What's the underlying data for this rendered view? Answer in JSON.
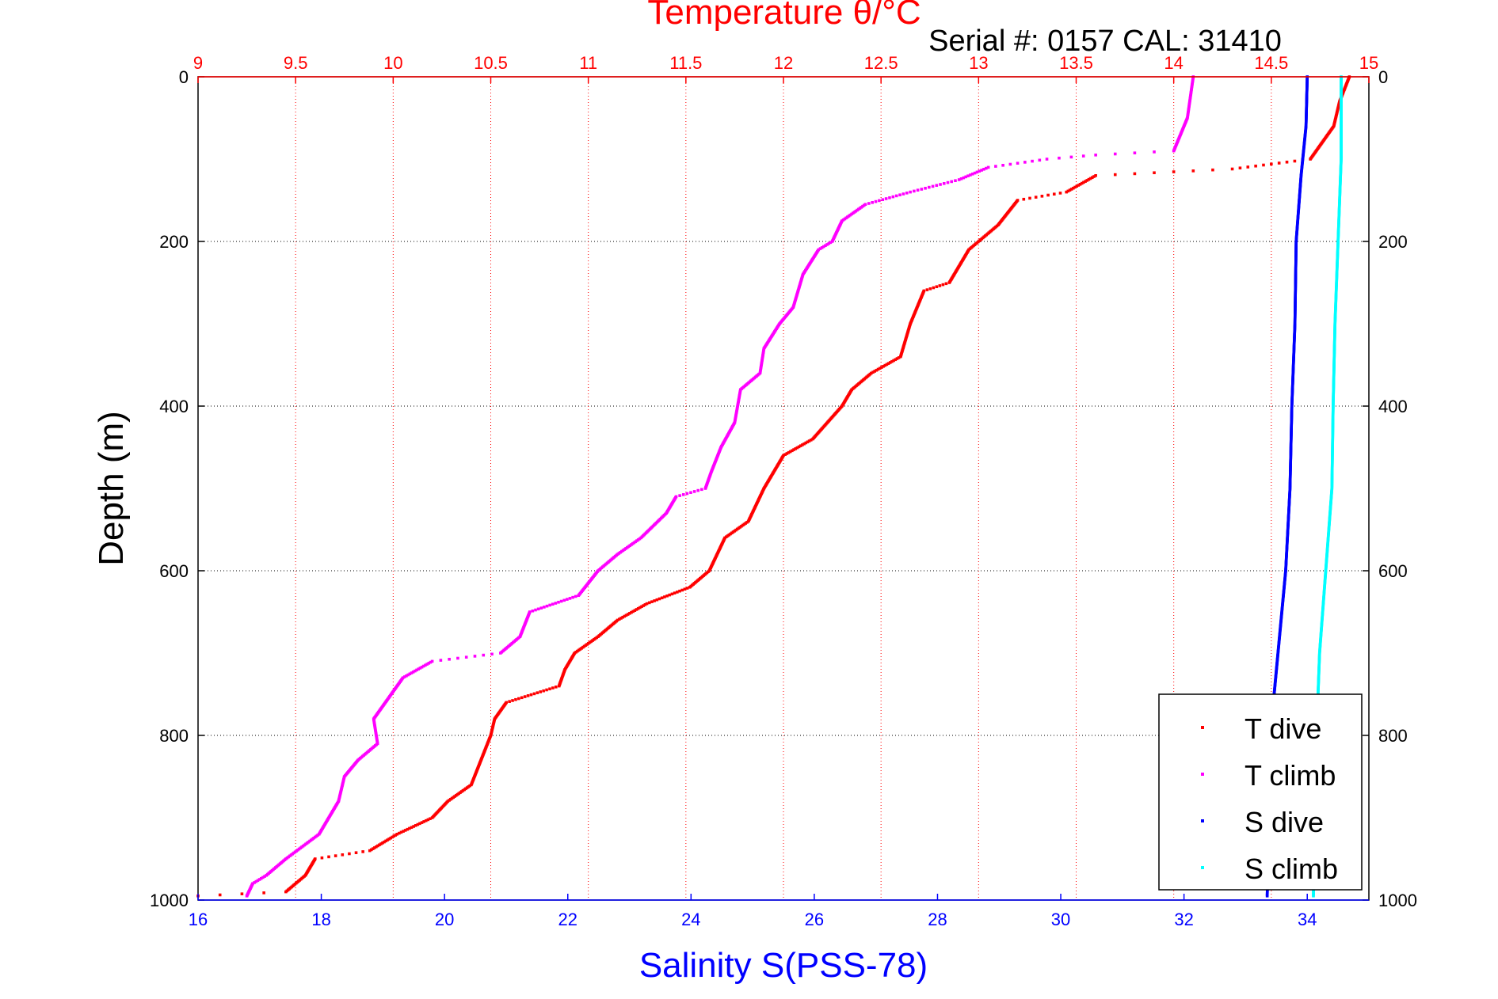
{
  "header": {
    "title": "Temperature θ/°C",
    "subtitle": "Serial #: 0157  CAL: 31410"
  },
  "colors": {
    "t_dive": "#ff0000",
    "t_climb": "#ff00ff",
    "s_dive": "#0000ff",
    "s_climb": "#00ffff",
    "axis_top": "#ff0000",
    "axis_bottom": "#0000ff",
    "grid_vertical": "#ff0000",
    "grid_horizontal": "#000000"
  },
  "chart_data": {
    "type": "scatter",
    "title": "Temperature θ/°C",
    "subtitle": "Serial #: 0157  CAL: 31410",
    "ylabel": "Depth (m)",
    "xlabel_top": "Temperature θ/°C",
    "xlabel_bottom": "Salinity S(PSS-78)",
    "y_inverted": true,
    "ylim": [
      0,
      1000
    ],
    "xlim_top": [
      9,
      15
    ],
    "xlim_bottom": [
      16,
      35
    ],
    "yticks": [
      0,
      200,
      400,
      600,
      800,
      1000
    ],
    "yticks_right": [
      0,
      200,
      400,
      600,
      800,
      1000
    ],
    "xticks_top": [
      "9",
      "9.5",
      "10",
      "10.5",
      "11",
      "11.5",
      "12",
      "12.5",
      "13",
      "13.5",
      "14",
      "14.5",
      "15"
    ],
    "xticks_bottom": [
      "16",
      "18",
      "20",
      "22",
      "24",
      "26",
      "28",
      "30",
      "32",
      "34"
    ],
    "grid": true,
    "legend_position": "bottom-right",
    "legend": [
      "T dive",
      "T climb",
      "S dive",
      "S climb"
    ],
    "series": [
      {
        "name": "T dive",
        "axis": "top",
        "points": [
          [
            14.9,
            0
          ],
          [
            14.85,
            30
          ],
          [
            14.82,
            60
          ],
          [
            14.7,
            100
          ],
          [
            14.3,
            112
          ],
          [
            13.6,
            120
          ],
          [
            13.45,
            140
          ],
          [
            13.2,
            150
          ],
          [
            13.1,
            180
          ],
          [
            12.95,
            210
          ],
          [
            12.85,
            250
          ],
          [
            12.72,
            260
          ],
          [
            12.65,
            300
          ],
          [
            12.6,
            340
          ],
          [
            12.45,
            360
          ],
          [
            12.35,
            380
          ],
          [
            12.3,
            400
          ],
          [
            12.15,
            440
          ],
          [
            12.0,
            460
          ],
          [
            11.9,
            500
          ],
          [
            11.82,
            540
          ],
          [
            11.7,
            560
          ],
          [
            11.62,
            600
          ],
          [
            11.52,
            620
          ],
          [
            11.3,
            640
          ],
          [
            11.15,
            660
          ],
          [
            11.05,
            680
          ],
          [
            10.93,
            700
          ],
          [
            10.88,
            720
          ],
          [
            10.85,
            740
          ],
          [
            10.58,
            760
          ],
          [
            10.52,
            780
          ],
          [
            10.5,
            800
          ],
          [
            10.45,
            830
          ],
          [
            10.4,
            860
          ],
          [
            10.28,
            880
          ],
          [
            10.2,
            900
          ],
          [
            10.02,
            920
          ],
          [
            9.88,
            940
          ],
          [
            9.6,
            950
          ],
          [
            9.55,
            970
          ],
          [
            9.45,
            990
          ],
          [
            9.0,
            995
          ]
        ]
      },
      {
        "name": "T climb",
        "axis": "top",
        "points": [
          [
            14.1,
            0
          ],
          [
            14.07,
            50
          ],
          [
            14.0,
            90
          ],
          [
            13.6,
            95
          ],
          [
            13.35,
            100
          ],
          [
            13.05,
            110
          ],
          [
            12.9,
            125
          ],
          [
            12.65,
            140
          ],
          [
            12.42,
            155
          ],
          [
            12.3,
            175
          ],
          [
            12.25,
            200
          ],
          [
            12.18,
            210
          ],
          [
            12.1,
            240
          ],
          [
            12.05,
            280
          ],
          [
            11.98,
            300
          ],
          [
            11.9,
            330
          ],
          [
            11.88,
            360
          ],
          [
            11.78,
            380
          ],
          [
            11.75,
            420
          ],
          [
            11.68,
            450
          ],
          [
            11.63,
            480
          ],
          [
            11.6,
            500
          ],
          [
            11.45,
            510
          ],
          [
            11.4,
            530
          ],
          [
            11.27,
            560
          ],
          [
            11.15,
            580
          ],
          [
            11.05,
            600
          ],
          [
            10.95,
            630
          ],
          [
            10.7,
            650
          ],
          [
            10.65,
            680
          ],
          [
            10.55,
            700
          ],
          [
            10.2,
            710
          ],
          [
            10.05,
            730
          ],
          [
            9.96,
            760
          ],
          [
            9.9,
            780
          ],
          [
            9.92,
            810
          ],
          [
            9.82,
            830
          ],
          [
            9.75,
            850
          ],
          [
            9.72,
            880
          ],
          [
            9.62,
            920
          ],
          [
            9.45,
            950
          ],
          [
            9.35,
            970
          ],
          [
            9.28,
            980
          ],
          [
            9.25,
            995
          ]
        ]
      },
      {
        "name": "S dive",
        "axis": "bottom",
        "points": [
          [
            34.0,
            0
          ],
          [
            33.98,
            60
          ],
          [
            33.9,
            120
          ],
          [
            33.82,
            200
          ],
          [
            33.8,
            300
          ],
          [
            33.75,
            400
          ],
          [
            33.72,
            500
          ],
          [
            33.65,
            600
          ],
          [
            33.55,
            680
          ],
          [
            33.45,
            760
          ],
          [
            33.4,
            800
          ],
          [
            33.38,
            900
          ],
          [
            33.35,
            995
          ]
        ]
      },
      {
        "name": "S climb",
        "axis": "bottom",
        "points": [
          [
            34.55,
            0
          ],
          [
            34.55,
            100
          ],
          [
            34.5,
            200
          ],
          [
            34.45,
            300
          ],
          [
            34.42,
            400
          ],
          [
            34.4,
            500
          ],
          [
            34.3,
            600
          ],
          [
            34.2,
            700
          ],
          [
            34.15,
            800
          ],
          [
            34.12,
            900
          ],
          [
            34.1,
            995
          ]
        ]
      }
    ]
  }
}
